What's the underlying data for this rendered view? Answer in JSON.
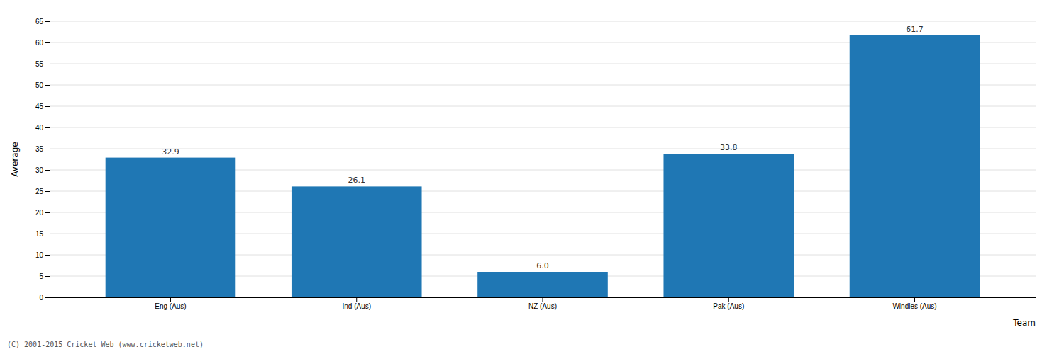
{
  "chart_data": {
    "type": "bar",
    "categories": [
      "Eng (Aus)",
      "Ind (Aus)",
      "NZ (Aus)",
      "Pak (Aus)",
      "Windies (Aus)"
    ],
    "values": [
      32.9,
      26.1,
      6.0,
      33.8,
      61.7
    ],
    "value_labels": [
      "32.9",
      "26.1",
      "6.0",
      "33.8",
      "61.7"
    ],
    "data_labels": true,
    "x_label": "Team",
    "y_label": "Average",
    "ylim": [
      0,
      65
    ],
    "yticks": [
      0,
      5,
      10,
      15,
      20,
      25,
      30,
      35,
      40,
      45,
      50,
      55,
      60,
      65
    ],
    "grid": true,
    "annotations": [
      "(C) 2001-2015 Cricket Web (www.cricketweb.net)"
    ]
  }
}
